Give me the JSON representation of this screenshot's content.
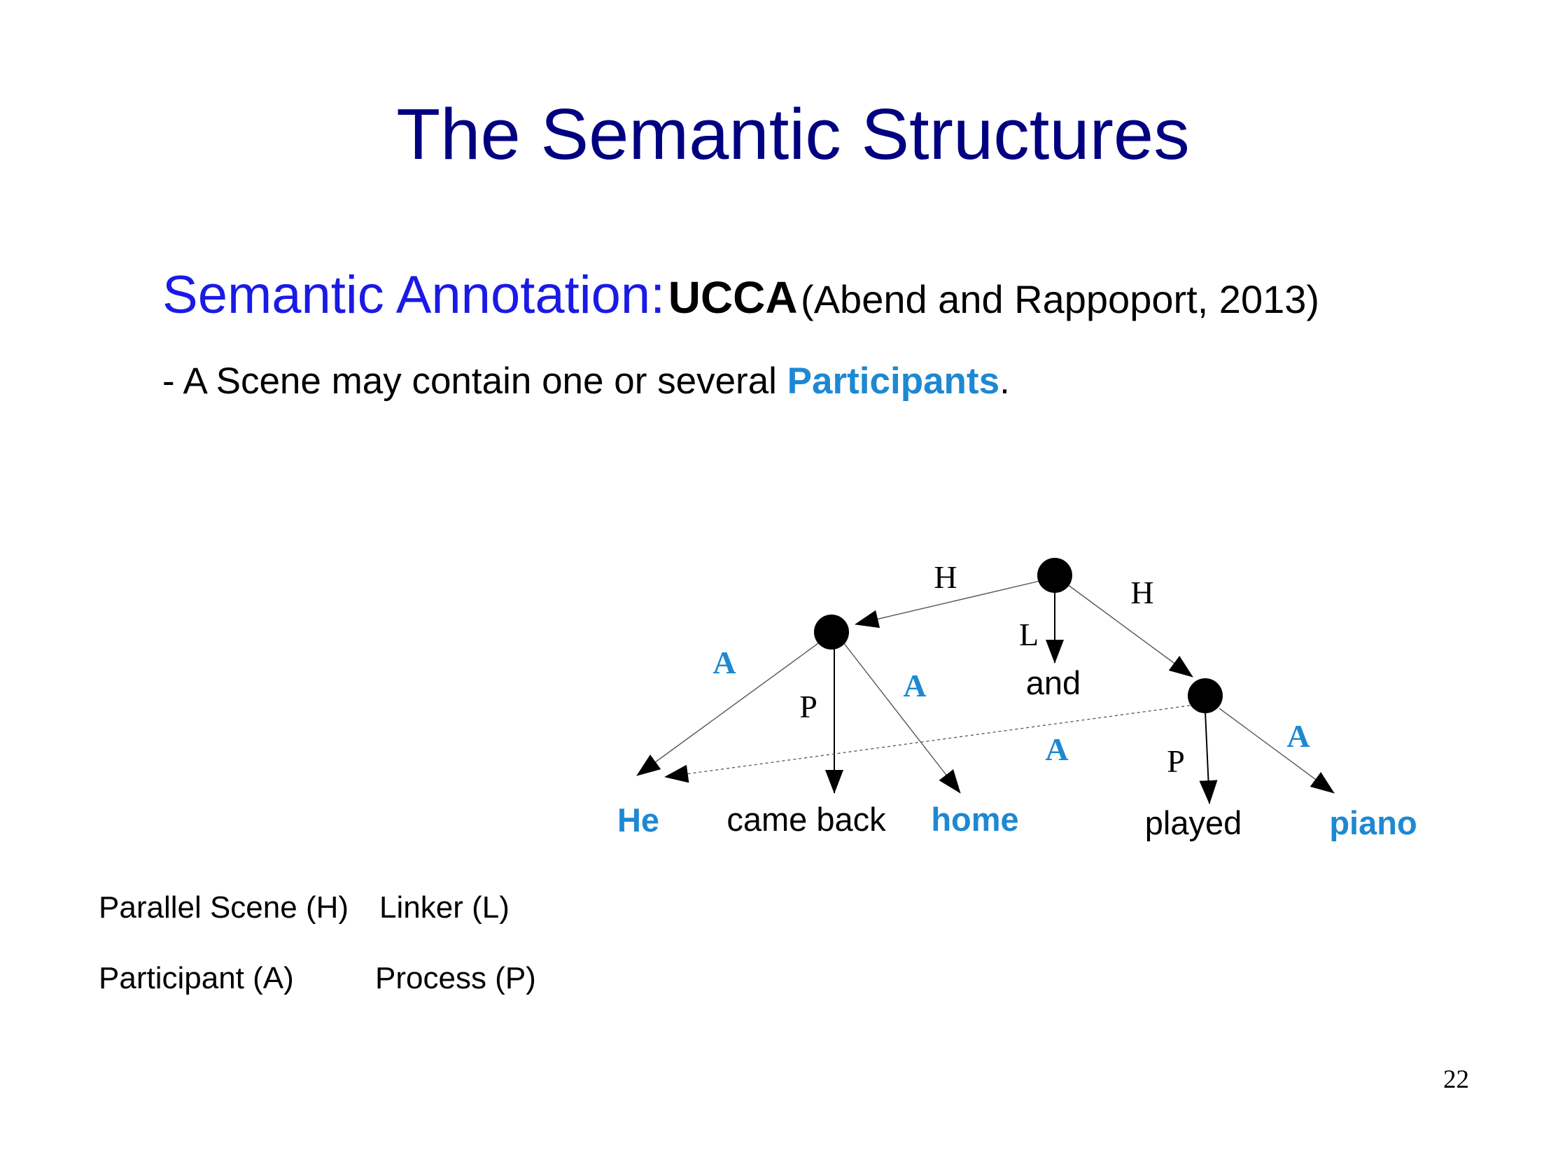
{
  "slide": {
    "title": "The Semantic Structures",
    "subtitle_lead": "Semantic Annotation:",
    "subtitle_bold": "UCCA",
    "subtitle_cite": "(Abend and Rappoport, 2013)",
    "bullet_text": "- A Scene may contain one or several ",
    "bullet_highlight": "Participants",
    "bullet_end": ".",
    "page_number": "22"
  },
  "legend": {
    "parallel_scene": "Parallel Scene (H)",
    "linker": "Linker (L)",
    "participant": "Participant (A)",
    "process": "Process (P)"
  },
  "diagram": {
    "words": {
      "he": "He",
      "came_back": "came back",
      "home": "home",
      "and": "and",
      "played": "played",
      "piano": "piano"
    },
    "edge_labels": {
      "h_left": "H",
      "h_right": "H",
      "l": "L",
      "a_he": "A",
      "p_came": "P",
      "a_home": "A",
      "a_shared": "A",
      "p_played": "P",
      "a_piano": "A"
    }
  },
  "colors": {
    "title": "#000080",
    "subtitle": "#1a1ae6",
    "participant": "#1e88d2",
    "text": "#000000"
  }
}
